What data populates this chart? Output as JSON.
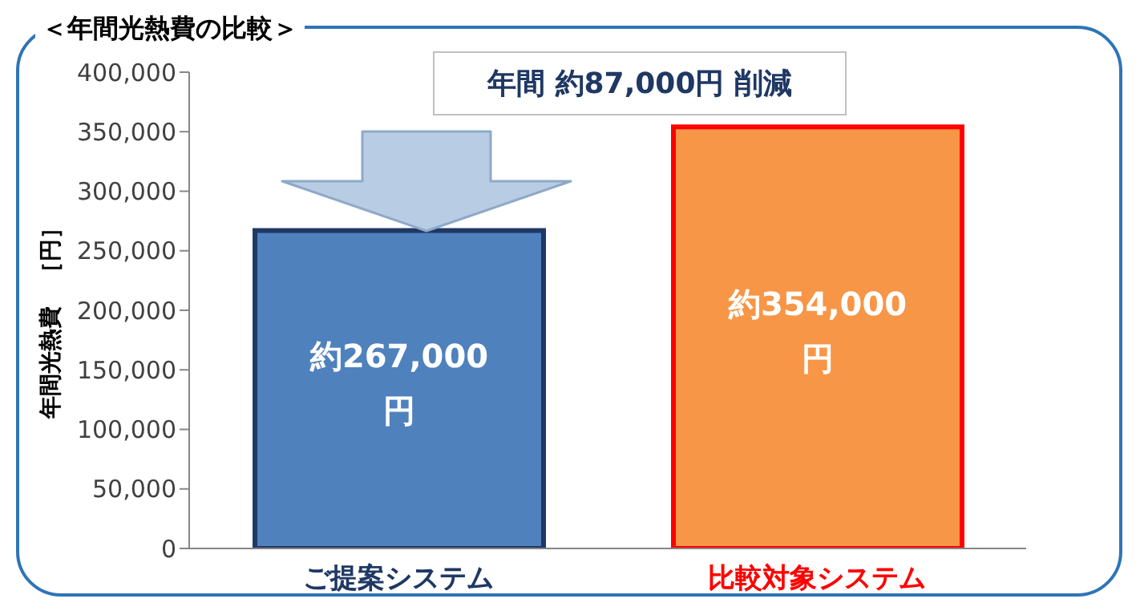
{
  "chart_data": {
    "type": "bar",
    "title": "＜年間光熱費の比較＞",
    "ylabel": "年間光熱費　［円］",
    "categories": [
      "ご提案システム",
      "比較対象システム"
    ],
    "values": [
      267000,
      354000
    ],
    "colors": [
      "#4f81bd",
      "#f79646"
    ],
    "value_labels": [
      "約267,000円",
      "約354,000円"
    ],
    "annotations": [
      "年間 約87,000円 削減"
    ],
    "ylim": [
      0,
      400000
    ],
    "yticks": [
      {
        "value": 0,
        "label": "0"
      },
      {
        "value": 50000,
        "label": "50,000"
      },
      {
        "value": 100000,
        "label": "100,000"
      },
      {
        "value": 150000,
        "label": "150,000"
      },
      {
        "value": 200000,
        "label": "200,000"
      },
      {
        "value": 250000,
        "label": "250,000"
      },
      {
        "value": 300000,
        "label": "300,000"
      },
      {
        "value": 350000,
        "label": "350,000"
      },
      {
        "value": 400000,
        "label": "400,000"
      }
    ],
    "grid": false,
    "legend": false
  }
}
